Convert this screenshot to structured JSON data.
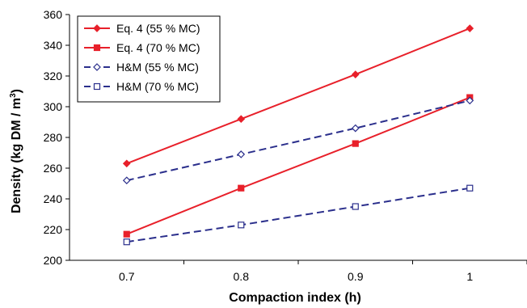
{
  "chart_data": {
    "type": "line",
    "title": "",
    "xlabel": "Compaction index (h)",
    "ylabel_main": "Density (kg DM / m",
    "ylabel_sup": "3",
    "ylabel_close": ")",
    "x": [
      0.7,
      0.8,
      0.9,
      1.0
    ],
    "x_tick_labels": [
      "0.7",
      "0.8",
      "0.9",
      "1"
    ],
    "xlim": [
      0.65,
      1.05
    ],
    "ylim": [
      200,
      360
    ],
    "y_ticks": [
      200,
      220,
      240,
      260,
      280,
      300,
      320,
      340,
      360
    ],
    "grid": false,
    "legend_position": "top-left",
    "series": [
      {
        "name": "Eq. 4 (55 % MC)",
        "values": [
          263,
          292,
          321,
          351
        ],
        "color": "#e8202a",
        "dash": "solid",
        "marker": "diamond",
        "filled": true
      },
      {
        "name": "Eq. 4 (70 % MC)",
        "values": [
          217,
          247,
          276,
          306
        ],
        "color": "#e8202a",
        "dash": "solid",
        "marker": "square",
        "filled": true
      },
      {
        "name": "H&M (55 % MC)",
        "values": [
          252,
          269,
          286,
          304
        ],
        "color": "#2b2f8c",
        "dash": "dashed",
        "marker": "diamond",
        "filled": false
      },
      {
        "name": "H&M (70 % MC)",
        "values": [
          212,
          223,
          235,
          247
        ],
        "color": "#2b2f8c",
        "dash": "dashed",
        "marker": "square",
        "filled": false
      }
    ]
  }
}
